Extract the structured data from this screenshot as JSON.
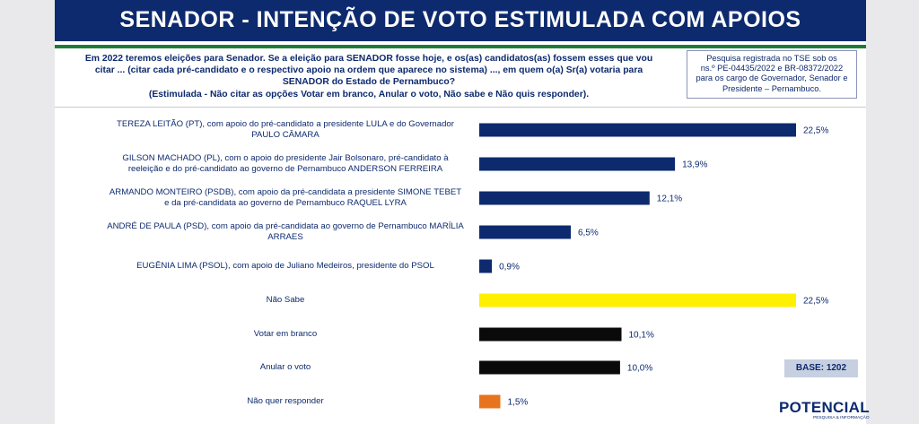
{
  "header": {
    "title": "SENADOR - INTENÇÃO DE VOTO ESTIMULADA COM APOIOS"
  },
  "question": {
    "line1": "Em 2022 teremos eleições para Senador. Se a eleição para SENADOR fosse hoje, e os(as) candidatos(as) fossem esses que vou",
    "line2": "citar ... (citar cada pré-candidato e o respectivo apoio na ordem que aparece no sistema) ..., em quem o(a) Sr(a) votaria para",
    "line3": "SENADOR do Estado de Pernambuco?",
    "line4": "(Estimulada - Não citar as opções Votar em branco, Anular o voto, Não sabe e Não quis responder)."
  },
  "note": {
    "line1": "Pesquisa registrada no TSE sob os",
    "line2": "ns.º PE-04435/2022 e BR-08372/2022",
    "line3": "para os cargo de Governador, Senador e",
    "line4": "Presidente – Pernambuco."
  },
  "base_label": "BASE: 1202",
  "logo": {
    "name": "POTENCIAL",
    "tagline": "PESQUISA & INFORMAÇÃO"
  },
  "colors": {
    "navy": "#0d2a6e",
    "yellow": "#ffef00",
    "black": "#0a0a0a",
    "orange": "#e8741e",
    "green": "#1f7a3a"
  },
  "chart_data": {
    "type": "bar",
    "orientation": "horizontal",
    "title": "SENADOR - INTENÇÃO DE VOTO ESTIMULADA COM APOIOS",
    "xlabel": "",
    "ylabel": "",
    "xlim": [
      0,
      22.5
    ],
    "unit": "%",
    "categories": [
      {
        "line1": "TEREZA LEITÃO (PT), com apoio do pré-candidato a presidente LULA e do Governador",
        "line2": "PAULO CÂMARA"
      },
      {
        "line1": "GILSON MACHADO (PL), com o apoio do presidente Jair Bolsonaro, pré-candidato à",
        "line2": "reeleição e do pré-candidato ao governo de Pernambuco ANDERSON FERREIRA"
      },
      {
        "line1": "ARMANDO MONTEIRO (PSDB), com apoio da pré-candidata a presidente SIMONE TEBET",
        "line2": "e da pré-candidata ao governo de Pernambuco RAQUEL LYRA"
      },
      {
        "line1": "ANDRÉ DE PAULA (PSD), com apoio da pré-candidata ao governo de Pernambuco MARÍLIA",
        "line2": "ARRAES"
      },
      {
        "line1": "EUGÊNIA LIMA (PSOL), com apoio de Juliano Medeiros, presidente do PSOL",
        "line2": ""
      },
      {
        "line1": "Não Sabe",
        "line2": ""
      },
      {
        "line1": "Votar em branco",
        "line2": ""
      },
      {
        "line1": "Anular o voto",
        "line2": ""
      },
      {
        "line1": "Não quer responder",
        "line2": ""
      }
    ],
    "values": [
      22.5,
      13.9,
      12.1,
      6.5,
      0.9,
      22.5,
      10.1,
      10.0,
      1.5
    ],
    "value_labels": [
      "22,5%",
      "13,9%",
      "12,1%",
      "6,5%",
      "0,9%",
      "22,5%",
      "10,1%",
      "10,0%",
      "1,5%"
    ],
    "bar_colors": [
      "#0d2a6e",
      "#0d2a6e",
      "#0d2a6e",
      "#0d2a6e",
      "#0d2a6e",
      "#ffef00",
      "#0a0a0a",
      "#0a0a0a",
      "#e8741e"
    ]
  }
}
